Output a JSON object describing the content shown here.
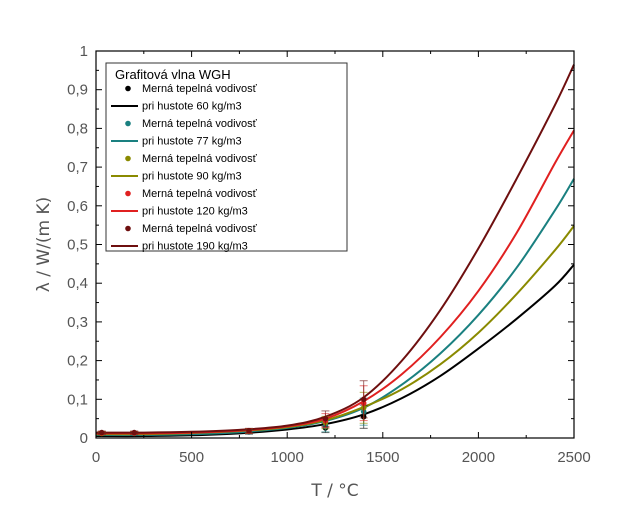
{
  "chart_data": {
    "type": "line",
    "xlabel": "T / °C",
    "ylabel": "λ / W/(m K)",
    "xlim": [
      0,
      2500
    ],
    "ylim": [
      0,
      1
    ],
    "x_ticks": [
      0,
      500,
      1000,
      1500,
      2000,
      2500
    ],
    "y_ticks": [
      0,
      0.1,
      0.2,
      0.3,
      0.4,
      0.5,
      0.6,
      0.7,
      0.8,
      0.9,
      1
    ],
    "x_tick_labels": [
      "0",
      "500",
      "1000",
      "1500",
      "2000",
      "2500"
    ],
    "y_tick_labels": [
      "0",
      "0,1",
      "0,2",
      "0,3",
      "0,4",
      "0,5",
      "0,6",
      "0,7",
      "0,8",
      "0,9",
      "1"
    ],
    "grid": false,
    "legend": {
      "title": "Grafitová vlna WGH",
      "placement": "top-left"
    },
    "series": [
      {
        "name": "60",
        "color": "#000000",
        "points_label": "Merná tepelná vodivosť",
        "line_label": "pri hustote 60 kg/m3",
        "points": [
          {
            "x": 30,
            "y": 0.012,
            "err": 0.004
          },
          {
            "x": 200,
            "y": 0.012,
            "err": 0.004
          },
          {
            "x": 800,
            "y": 0.016,
            "err": 0.006
          },
          {
            "x": 1200,
            "y": 0.026,
            "err": 0.012
          },
          {
            "x": 1400,
            "y": 0.055,
            "err": 0.03
          }
        ],
        "curve": {
          "x": [
            0,
            250,
            500,
            750,
            1000,
            1200,
            1400,
            1600,
            1800,
            2000,
            2200,
            2400,
            2500
          ],
          "y": [
            0.005,
            0.005,
            0.007,
            0.012,
            0.022,
            0.036,
            0.061,
            0.103,
            0.16,
            0.231,
            0.308,
            0.393,
            0.448
          ]
        }
      },
      {
        "name": "77",
        "color": "#1a8080",
        "points_label": "Merná tepelná vodivosť",
        "line_label": "pri hustote 77 kg/m3",
        "points": [
          {
            "x": 30,
            "y": 0.012,
            "err": 0.004
          },
          {
            "x": 200,
            "y": 0.012,
            "err": 0.004
          },
          {
            "x": 800,
            "y": 0.017,
            "err": 0.006
          },
          {
            "x": 1200,
            "y": 0.03,
            "err": 0.014
          },
          {
            "x": 1400,
            "y": 0.068,
            "err": 0.035
          }
        ],
        "curve": {
          "x": [
            0,
            250,
            500,
            750,
            1000,
            1200,
            1400,
            1600,
            1800,
            2000,
            2200,
            2400,
            2500
          ],
          "y": [
            0.008,
            0.008,
            0.01,
            0.015,
            0.026,
            0.044,
            0.078,
            0.138,
            0.218,
            0.318,
            0.44,
            0.588,
            0.67
          ]
        }
      },
      {
        "name": "90",
        "color": "#8a8a00",
        "points_label": "Merná tepelná vodivosť",
        "line_label": "pri hustote 90 kg/m3",
        "points": [
          {
            "x": 30,
            "y": 0.012,
            "err": 0.004
          },
          {
            "x": 200,
            "y": 0.013,
            "err": 0.004
          },
          {
            "x": 800,
            "y": 0.018,
            "err": 0.006
          },
          {
            "x": 1200,
            "y": 0.04,
            "err": 0.016
          },
          {
            "x": 1400,
            "y": 0.078,
            "err": 0.04
          }
        ],
        "curve": {
          "x": [
            0,
            250,
            500,
            750,
            1000,
            1200,
            1400,
            1600,
            1800,
            2000,
            2200,
            2400,
            2500
          ],
          "y": [
            0.01,
            0.01,
            0.013,
            0.018,
            0.028,
            0.046,
            0.08,
            0.126,
            0.19,
            0.272,
            0.372,
            0.485,
            0.548
          ]
        }
      },
      {
        "name": "120",
        "color": "#e02020",
        "points_label": "Merná tepelná vodivosť",
        "line_label": "pri hustote 120 kg/m3",
        "points": [
          {
            "x": 30,
            "y": 0.013,
            "err": 0.004
          },
          {
            "x": 200,
            "y": 0.013,
            "err": 0.004
          },
          {
            "x": 800,
            "y": 0.018,
            "err": 0.006
          },
          {
            "x": 1200,
            "y": 0.045,
            "err": 0.018
          },
          {
            "x": 1400,
            "y": 0.09,
            "err": 0.045
          }
        ],
        "curve": {
          "x": [
            0,
            250,
            500,
            750,
            1000,
            1200,
            1400,
            1600,
            1800,
            2000,
            2200,
            2400,
            2500
          ],
          "y": [
            0.012,
            0.012,
            0.014,
            0.019,
            0.03,
            0.05,
            0.095,
            0.165,
            0.26,
            0.38,
            0.53,
            0.71,
            0.795
          ]
        }
      },
      {
        "name": "190",
        "color": "#6e0f0f",
        "points_label": "Merná tepelná vodivosť",
        "line_label": "pri hustote 190 kg/m3",
        "points": [
          {
            "x": 30,
            "y": 0.014,
            "err": 0.004
          },
          {
            "x": 200,
            "y": 0.014,
            "err": 0.004
          },
          {
            "x": 800,
            "y": 0.019,
            "err": 0.006
          },
          {
            "x": 1200,
            "y": 0.05,
            "err": 0.02
          },
          {
            "x": 1400,
            "y": 0.1,
            "err": 0.048
          }
        ],
        "curve": {
          "x": [
            0,
            250,
            500,
            750,
            1000,
            1200,
            1400,
            1600,
            1800,
            2000,
            2200,
            2400,
            2500
          ],
          "y": [
            0.014,
            0.014,
            0.016,
            0.021,
            0.032,
            0.055,
            0.105,
            0.2,
            0.33,
            0.49,
            0.67,
            0.86,
            0.965
          ]
        }
      }
    ]
  }
}
